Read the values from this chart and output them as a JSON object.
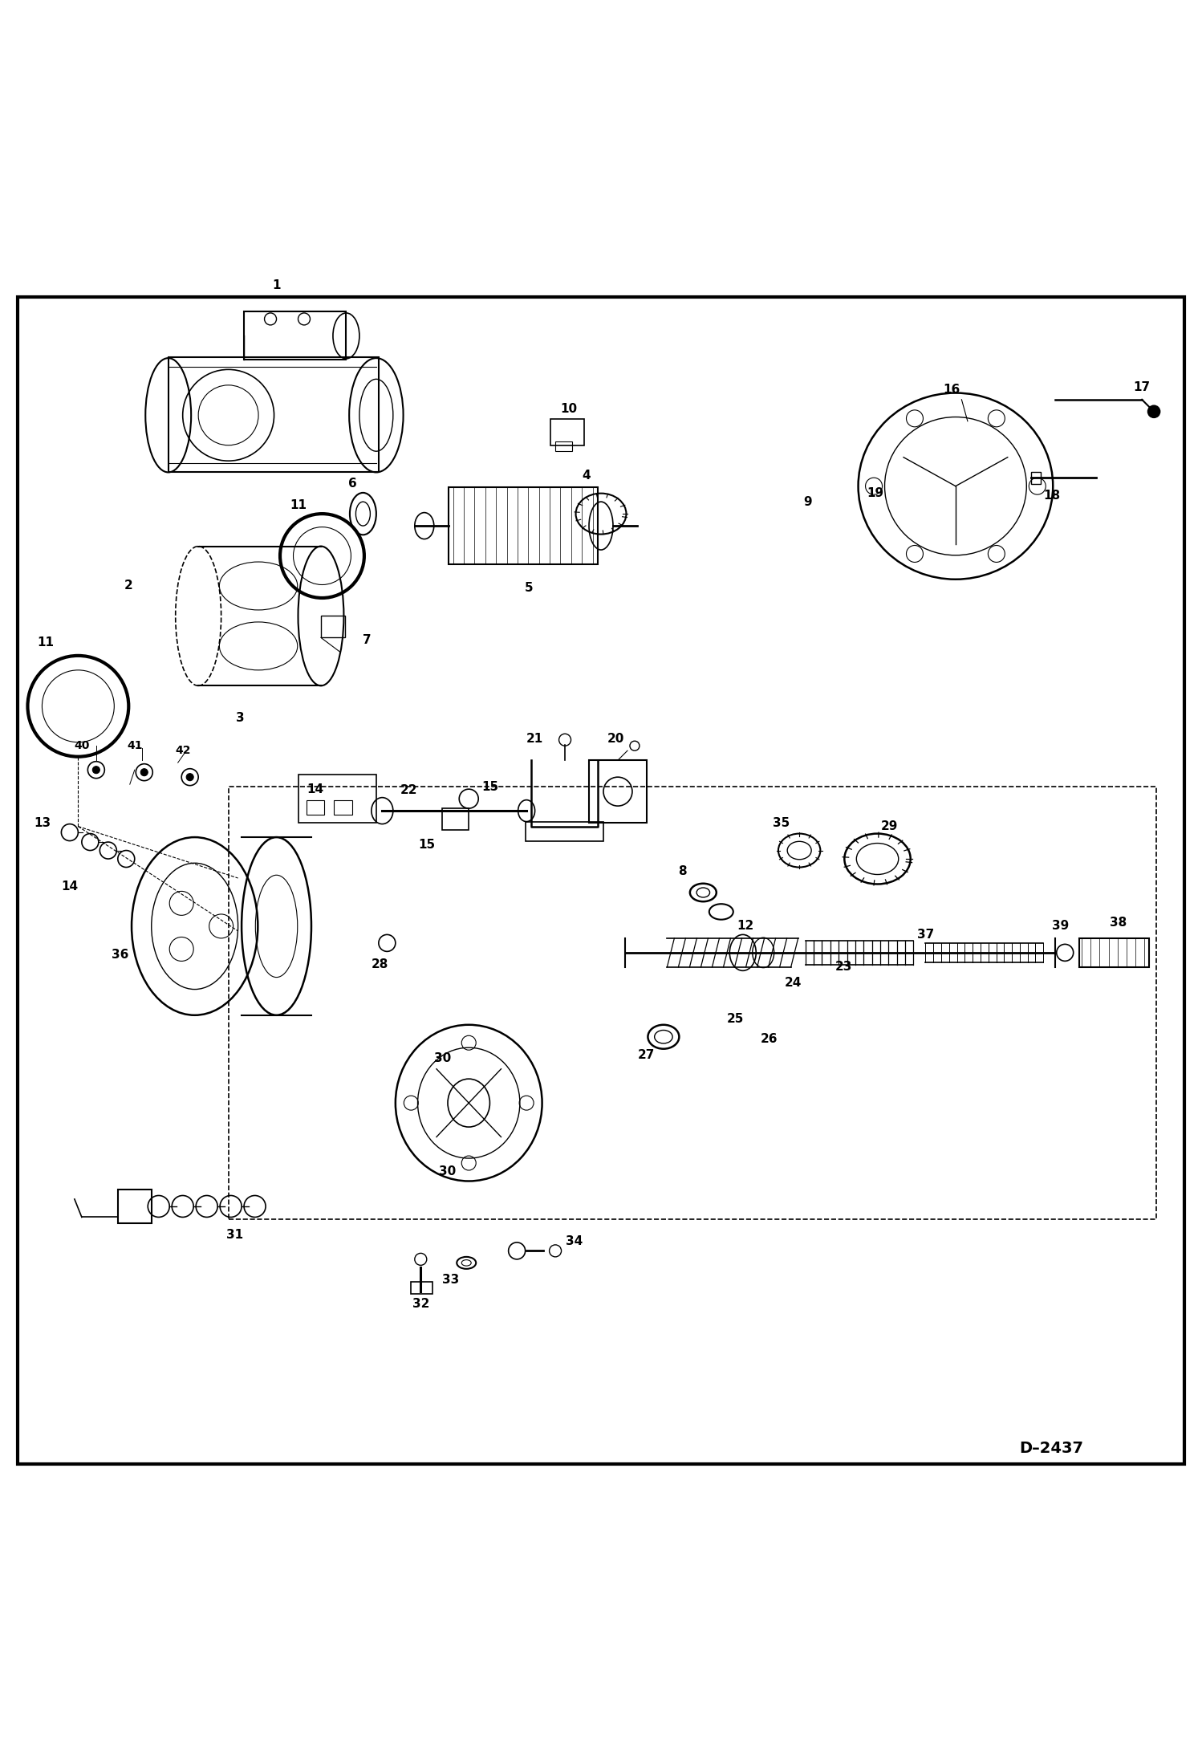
{
  "background_color": "#ffffff",
  "border_color": "#000000",
  "diagram_code": "D-2437",
  "line_color": "#000000",
  "text_color": "#000000",
  "font_size_label": 11,
  "font_size_code": 14,
  "border_width": 3
}
